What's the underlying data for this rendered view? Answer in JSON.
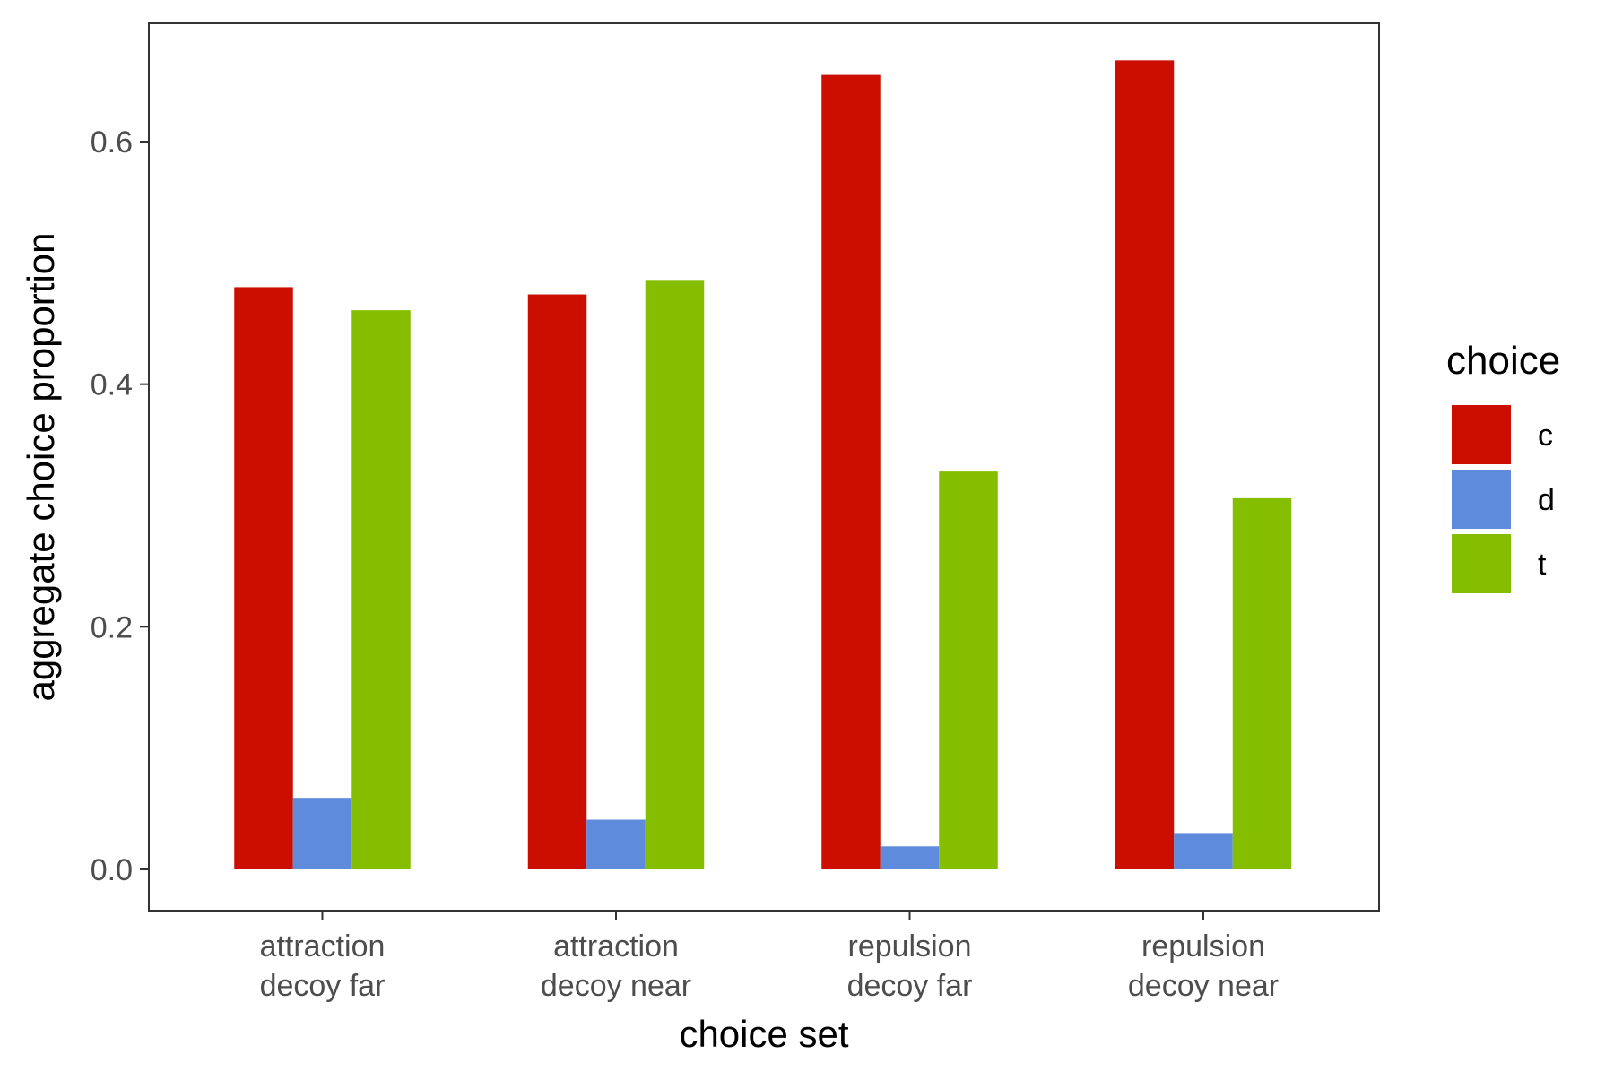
{
  "chart_data": {
    "type": "bar",
    "categories": [
      [
        "attraction",
        "decoy far"
      ],
      [
        "attraction",
        "decoy near"
      ],
      [
        "repulsion",
        "decoy far"
      ],
      [
        "repulsion",
        "decoy near"
      ]
    ],
    "series": [
      {
        "name": "c",
        "color": "#CC0E00",
        "values": [
          0.48,
          0.474,
          0.655,
          0.667
        ]
      },
      {
        "name": "d",
        "color": "#5F8BDC",
        "values": [
          0.059,
          0.041,
          0.019,
          0.03
        ]
      },
      {
        "name": "t",
        "color": "#85BE00",
        "values": [
          0.461,
          0.486,
          0.328,
          0.306
        ]
      }
    ],
    "xlabel": "choice set",
    "ylabel": "aggregate choice proportion",
    "legend_title": "choice",
    "legend_position": "right",
    "ylim": [
      -0.032,
      0.7
    ],
    "yticks": [
      0.0,
      0.2,
      0.4,
      0.6
    ],
    "ytick_labels": [
      "0.0",
      "0.2",
      "0.4",
      "0.6"
    ],
    "grid": false
  }
}
